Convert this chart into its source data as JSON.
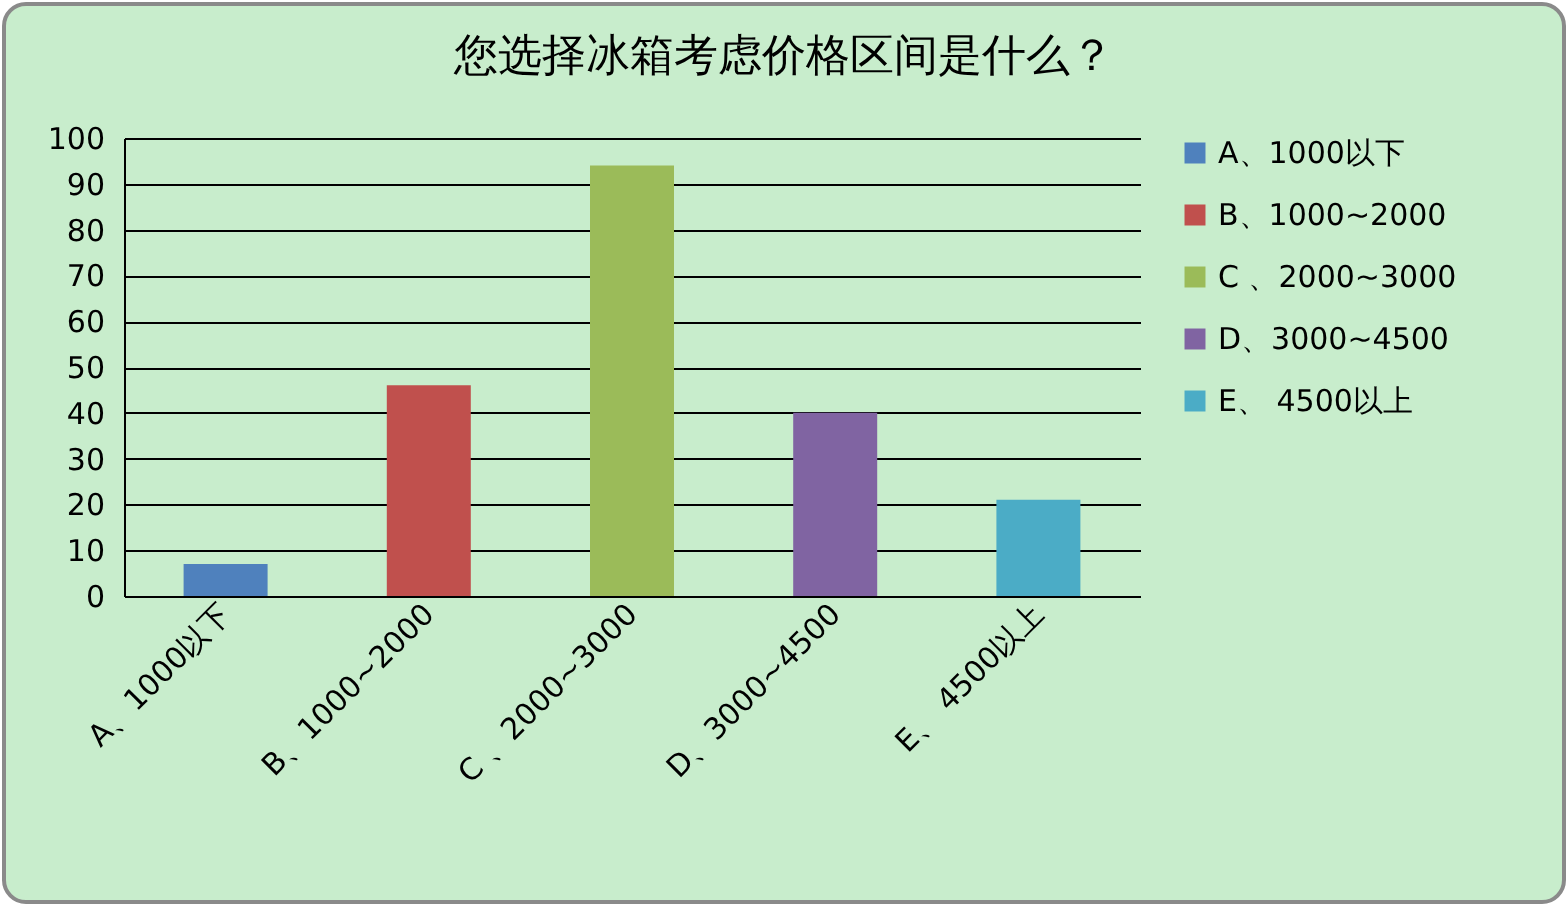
{
  "chart_data": {
    "type": "bar",
    "title": "您选择冰箱考虑价格区间是什么？",
    "categories": [
      "A、1000以下",
      "B、1000~2000",
      "C 、2000~3000",
      "D、3000~4500",
      "E、 4500以上"
    ],
    "series": [
      {
        "name": "A、1000以下",
        "color": "#4f81bd",
        "values": [
          7,
          null,
          null,
          null,
          null
        ]
      },
      {
        "name": "B、1000~2000",
        "color": "#c0504d",
        "values": [
          null,
          46,
          null,
          null,
          null
        ]
      },
      {
        "name": "C 、2000~3000",
        "color": "#9bbb59",
        "values": [
          null,
          null,
          94,
          null,
          null
        ]
      },
      {
        "name": "D、3000~4500",
        "color": "#8064a2",
        "values": [
          null,
          null,
          null,
          40,
          null
        ]
      },
      {
        "name": "E、 4500以上",
        "color": "#4bacc6",
        "values": [
          null,
          null,
          null,
          null,
          21
        ]
      }
    ],
    "ylim": [
      0,
      100
    ],
    "yticks": [
      0,
      10,
      20,
      30,
      40,
      50,
      60,
      70,
      80,
      90,
      100
    ],
    "grid": "y",
    "legend": "right"
  }
}
